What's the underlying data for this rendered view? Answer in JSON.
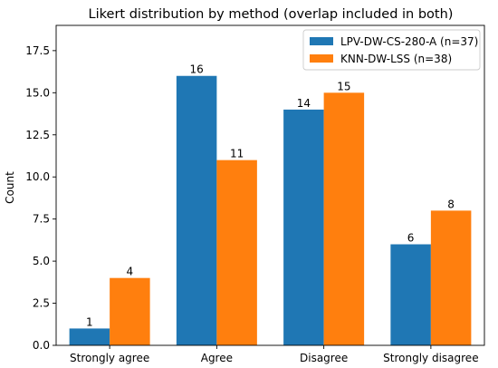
{
  "chart_data": {
    "type": "bar",
    "title": "Likert distribution by method (overlap included in both)",
    "xlabel": "",
    "ylabel": "Count",
    "categories": [
      "Strongly agree",
      "Agree",
      "Disagree",
      "Strongly disagree"
    ],
    "series": [
      {
        "name": "LPV-DW-CS-280-A (n=37)",
        "values": [
          1,
          16,
          14,
          6
        ],
        "color": "#1f77b4"
      },
      {
        "name": "KNN-DW-LSS (n=38)",
        "values": [
          4,
          11,
          15,
          8
        ],
        "color": "#ff7f0e"
      }
    ],
    "ylim": [
      0,
      19
    ],
    "yticks": [
      0.0,
      2.5,
      5.0,
      7.5,
      10.0,
      12.5,
      15.0,
      17.5
    ],
    "ytick_labels": [
      "0.0",
      "2.5",
      "5.0",
      "7.5",
      "10.0",
      "12.5",
      "15.0",
      "17.5"
    ],
    "grid": false,
    "legend_position": "top-right",
    "data_labels": true
  }
}
